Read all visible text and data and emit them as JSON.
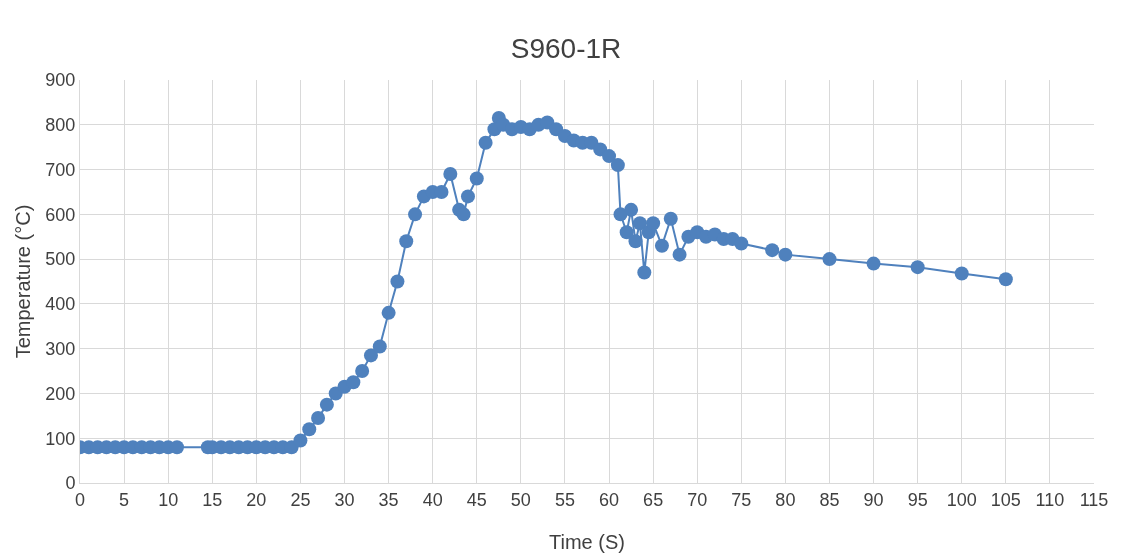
{
  "chart_data": {
    "type": "line",
    "title": "S960-1R",
    "xlabel": "Time (S)",
    "ylabel": "Temperature (°C)",
    "x": [
      0,
      1,
      2,
      3,
      4,
      5,
      6,
      7,
      8,
      9,
      10,
      11,
      14.5,
      15,
      16,
      17,
      18,
      19,
      20,
      21,
      22,
      23,
      24,
      25,
      26,
      27,
      28,
      29,
      30,
      31,
      32,
      33,
      34,
      35,
      36,
      37,
      38,
      39,
      40,
      41,
      42,
      43,
      43.5,
      44,
      45,
      46,
      47,
      47.5,
      48,
      49,
      50,
      51,
      52,
      53,
      54,
      55,
      56,
      57,
      58,
      59,
      60,
      61,
      61.3,
      62,
      62.5,
      63,
      63.5,
      64,
      64.5,
      65,
      66,
      67,
      68,
      69,
      70,
      71,
      72,
      73,
      74,
      75,
      78.5,
      80,
      85,
      90,
      95,
      100,
      105
    ],
    "series": [
      {
        "color": "#4f81bd",
        "values": [
          80,
          80,
          80,
          80,
          80,
          80,
          80,
          80,
          80,
          80,
          80,
          80,
          80,
          80,
          80,
          80,
          80,
          80,
          80,
          80,
          80,
          80,
          80,
          95,
          120,
          145,
          175,
          200,
          215,
          225,
          250,
          285,
          305,
          380,
          450,
          540,
          600,
          640,
          650,
          650,
          690,
          610,
          600,
          640,
          680,
          760,
          790,
          815,
          800,
          790,
          795,
          790,
          800,
          805,
          790,
          775,
          765,
          760,
          760,
          745,
          730,
          710,
          600,
          560,
          610,
          540,
          580,
          470,
          560,
          580,
          530,
          590,
          510,
          550,
          560,
          550,
          555,
          545,
          545,
          535,
          520,
          510,
          500,
          490,
          482,
          468,
          455
        ]
      }
    ],
    "xlim": [
      0,
      115
    ],
    "xticks": [
      0,
      5,
      10,
      15,
      20,
      25,
      30,
      35,
      40,
      45,
      50,
      55,
      60,
      65,
      70,
      75,
      80,
      85,
      90,
      95,
      100,
      105,
      110,
      115
    ],
    "ylim": [
      0,
      900
    ],
    "yticks": [
      0,
      100,
      200,
      300,
      400,
      500,
      600,
      700,
      800,
      900
    ],
    "grid": true,
    "marker": "circle",
    "line_style": "solid"
  }
}
